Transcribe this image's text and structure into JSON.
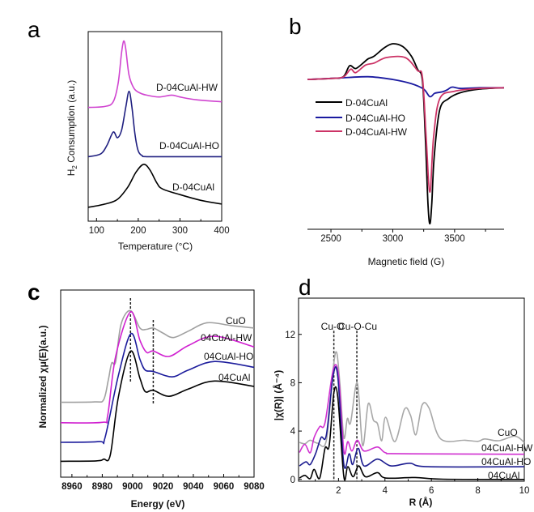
{
  "chart_data": [
    {
      "panel": "a",
      "type": "line",
      "xlabel": "Temperature (°C)",
      "ylabel_main": "H",
      "ylabel_sub": "2",
      "ylabel_rest": " Consumption (a.u.)",
      "xlim": [
        80,
        400
      ],
      "ylim": [
        0,
        10
      ],
      "xticks": [
        100,
        200,
        300,
        400
      ],
      "series": [
        {
          "name": "D-04CuAl-HW",
          "color": "#d044d0",
          "points": [
            [
              80,
              6.0
            ],
            [
              120,
              6.05
            ],
            [
              140,
              6.3
            ],
            [
              152,
              7.3
            ],
            [
              160,
              8.9
            ],
            [
              165,
              9.5
            ],
            [
              170,
              9.1
            ],
            [
              178,
              7.7
            ],
            [
              190,
              7.0
            ],
            [
              205,
              6.75
            ],
            [
              220,
              6.65
            ],
            [
              250,
              6.55
            ],
            [
              280,
              6.65
            ],
            [
              300,
              6.55
            ],
            [
              340,
              6.4
            ],
            [
              400,
              6.3
            ]
          ]
        },
        {
          "name": "D-04CuAl-HO",
          "color": "#1f1f80",
          "points": [
            [
              80,
              3.4
            ],
            [
              110,
              3.55
            ],
            [
              125,
              4.0
            ],
            [
              140,
              4.7
            ],
            [
              150,
              4.4
            ],
            [
              160,
              4.8
            ],
            [
              170,
              6.0
            ],
            [
              178,
              6.85
            ],
            [
              185,
              6.0
            ],
            [
              192,
              4.6
            ],
            [
              200,
              3.7
            ],
            [
              210,
              3.45
            ],
            [
              220,
              3.4
            ],
            [
              300,
              3.4
            ],
            [
              400,
              3.4
            ]
          ]
        },
        {
          "name": "D-04CuAl",
          "color": "#000000",
          "points": [
            [
              80,
              0.73
            ],
            [
              120,
              0.9
            ],
            [
              150,
              1.15
            ],
            [
              175,
              1.8
            ],
            [
              195,
              2.6
            ],
            [
              213,
              3.0
            ],
            [
              228,
              2.7
            ],
            [
              245,
              2.0
            ],
            [
              258,
              1.7
            ],
            [
              300,
              1.4
            ],
            [
              350,
              1.1
            ],
            [
              400,
              0.9
            ]
          ]
        }
      ]
    },
    {
      "panel": "b",
      "type": "line",
      "xlabel": "Magnetic field (G)",
      "ylabel": "",
      "xlim": [
        2310,
        3900
      ],
      "ylim": [
        -10.3,
        4.5
      ],
      "xticks": [
        2500,
        3000,
        3500
      ],
      "legend": "upper-left",
      "series": [
        {
          "name": "D-04CuAl",
          "color": "#000000",
          "points": [
            [
              2310,
              0.6
            ],
            [
              2500,
              0.68
            ],
            [
              2600,
              0.8
            ],
            [
              2650,
              1.6
            ],
            [
              2700,
              1.4
            ],
            [
              2760,
              1.8
            ],
            [
              2800,
              2.1
            ],
            [
              2850,
              2.3
            ],
            [
              2930,
              2.9
            ],
            [
              3000,
              3.2
            ],
            [
              3080,
              3.0
            ],
            [
              3150,
              2.3
            ],
            [
              3200,
              1.35
            ],
            [
              3240,
              0.5
            ],
            [
              3265,
              -4.0
            ],
            [
              3285,
              -8.5
            ],
            [
              3300,
              -9.9
            ],
            [
              3315,
              -8.5
            ],
            [
              3335,
              -5.0
            ],
            [
              3380,
              -1.6
            ],
            [
              3450,
              -0.8
            ],
            [
              3550,
              -0.35
            ],
            [
              3700,
              -0.1
            ],
            [
              3900,
              0
            ]
          ]
        },
        {
          "name": "D-04CuAl-HO",
          "color": "#1a1aa0",
          "points": [
            [
              2310,
              0.6
            ],
            [
              2550,
              0.7
            ],
            [
              2800,
              0.8
            ],
            [
              3000,
              0.6
            ],
            [
              3150,
              0.3
            ],
            [
              3250,
              -0.1
            ],
            [
              3300,
              -0.65
            ],
            [
              3340,
              -0.4
            ],
            [
              3400,
              -0.3
            ],
            [
              3440,
              -0.15
            ],
            [
              3480,
              0.05
            ],
            [
              3550,
              -0.05
            ],
            [
              3700,
              0
            ],
            [
              3900,
              0
            ]
          ]
        },
        {
          "name": "D-04CuAl-HW",
          "color": "#cc3366",
          "points": [
            [
              2310,
              0.6
            ],
            [
              2500,
              0.68
            ],
            [
              2600,
              0.78
            ],
            [
              2660,
              1.35
            ],
            [
              2700,
              1.1
            ],
            [
              2780,
              1.65
            ],
            [
              2850,
              1.8
            ],
            [
              2950,
              2.2
            ],
            [
              3100,
              2.2
            ],
            [
              3200,
              1.25
            ],
            [
              3240,
              0.76
            ],
            [
              3270,
              -3.6
            ],
            [
              3300,
              -7.6
            ],
            [
              3330,
              -3.6
            ],
            [
              3380,
              -0.8
            ],
            [
              3500,
              -0.25
            ],
            [
              3700,
              -0.05
            ],
            [
              3900,
              0
            ]
          ]
        }
      ]
    },
    {
      "panel": "c",
      "type": "line",
      "xlabel": "Energy (eV)",
      "ylabel": "Normalized χμ(E)(a.u.)",
      "xlim": [
        8952.6,
        9080
      ],
      "ylim": [
        0,
        10
      ],
      "xticks": [
        8960,
        8980,
        9000,
        9020,
        9040,
        9060,
        9080
      ],
      "reference_lines_x": [
        8998.6,
        9013.6
      ],
      "series": [
        {
          "name": "CuO",
          "color": "#a0a0a0",
          "points": [
            [
              8952.6,
              4.0
            ],
            [
              8975,
              4.02
            ],
            [
              8980.9,
              4.14
            ],
            [
              8984,
              5.2
            ],
            [
              8986.2,
              6.09
            ],
            [
              8988.8,
              6.16
            ],
            [
              8992.4,
              8.18
            ],
            [
              8998.6,
              8.9
            ],
            [
              9004.8,
              7.97
            ],
            [
              9009.2,
              7.9
            ],
            [
              9013.6,
              7.97
            ],
            [
              9020,
              7.7
            ],
            [
              9026.9,
              7.46
            ],
            [
              9036.6,
              7.8
            ],
            [
              9049,
              8.25
            ],
            [
              9065,
              8.1
            ],
            [
              9080,
              7.97
            ]
          ]
        },
        {
          "name": "04CuAl-HW",
          "color": "#d020d0",
          "points": [
            [
              8952.6,
              2.91
            ],
            [
              8980,
              2.93
            ],
            [
              8983.5,
              3.27
            ],
            [
              8988.8,
              6.45
            ],
            [
              8998.6,
              8.83
            ],
            [
              9004.8,
              7.32
            ],
            [
              9009.2,
              6.67
            ],
            [
              9013.6,
              6.74
            ],
            [
              9024,
              6.45
            ],
            [
              9036.6,
              7.03
            ],
            [
              9054,
              7.53
            ],
            [
              9080,
              6.96
            ]
          ]
        },
        {
          "name": "04CuAl-HO",
          "color": "#1c1c9c",
          "points": [
            [
              8952.6,
              1.86
            ],
            [
              8978,
              1.9
            ],
            [
              8981.8,
              2.11
            ],
            [
              8990.6,
              5.43
            ],
            [
              8998.9,
              7.67
            ],
            [
              9004.8,
              6.3
            ],
            [
              9008.3,
              5.72
            ],
            [
              9013.6,
              5.65
            ],
            [
              9026,
              5.36
            ],
            [
              9036.6,
              5.72
            ],
            [
              9054,
              6.18
            ],
            [
              9080,
              5.87
            ]
          ]
        },
        {
          "name": "04CuAl",
          "color": "#000000",
          "points": [
            [
              8952.6,
              0.85
            ],
            [
              8976,
              0.87
            ],
            [
              8980.9,
              0.96
            ],
            [
              8985.3,
              1.18
            ],
            [
              8990.6,
              4.28
            ],
            [
              8998.6,
              6.73
            ],
            [
              9004.8,
              5.29
            ],
            [
              9008.3,
              4.57
            ],
            [
              9013.6,
              4.64
            ],
            [
              9024,
              4.32
            ],
            [
              9036.6,
              4.71
            ],
            [
              9054,
              5.14
            ],
            [
              9080,
              4.85
            ]
          ]
        }
      ]
    },
    {
      "panel": "d",
      "type": "line",
      "xlabel": "R (Å)",
      "ylabel": "|χ(R)| (Å⁻⁴)",
      "xlim": [
        0.28,
        10
      ],
      "ylim": [
        -0.15,
        15
      ],
      "xticks": [
        2,
        4,
        6,
        8,
        10
      ],
      "yticks": [
        0,
        4,
        8,
        12
      ],
      "reference_lines_x": [
        1.8,
        2.79
      ],
      "annotations": [
        "Cu-O",
        "Cu-O-Cu"
      ],
      "series": [
        {
          "name": "CuO",
          "color": "#a8a8a8",
          "points": [
            [
              0.32,
              3.06
            ],
            [
              0.55,
              2.95
            ],
            [
              0.78,
              3.24
            ],
            [
              1.1,
              3.0
            ],
            [
              1.48,
              3.24
            ],
            [
              1.77,
              9.16
            ],
            [
              1.92,
              10.5
            ],
            [
              2.06,
              7.9
            ],
            [
              2.23,
              3.46
            ],
            [
              2.38,
              5.03
            ],
            [
              2.52,
              4.7
            ],
            [
              2.81,
              7.98
            ],
            [
              3.04,
              2.8
            ],
            [
              3.28,
              6.26
            ],
            [
              3.5,
              4.92
            ],
            [
              3.68,
              4.6
            ],
            [
              3.86,
              3.2
            ],
            [
              4.03,
              5.14
            ],
            [
              4.43,
              3.13
            ],
            [
              4.84,
              5.8
            ],
            [
              5.1,
              5.3
            ],
            [
              5.33,
              3.69
            ],
            [
              5.6,
              6.15
            ],
            [
              5.9,
              5.9
            ],
            [
              6.4,
              3.35
            ],
            [
              7.45,
              3.24
            ],
            [
              8.0,
              3.15
            ],
            [
              8.3,
              3.35
            ],
            [
              8.9,
              3.2
            ],
            [
              9.6,
              3.58
            ],
            [
              10,
              3.06
            ]
          ]
        },
        {
          "name": "04CuAl-HW",
          "color": "#d030d0",
          "points": [
            [
              0.32,
              2.23
            ],
            [
              0.55,
              2.9
            ],
            [
              0.78,
              2.2
            ],
            [
              0.95,
              3.46
            ],
            [
              1.19,
              4.36
            ],
            [
              1.42,
              4.69
            ],
            [
              1.77,
              9.05
            ],
            [
              2.0,
              8.6
            ],
            [
              2.23,
              2.35
            ],
            [
              2.4,
              3.13
            ],
            [
              2.58,
              2.35
            ],
            [
              2.81,
              3.24
            ],
            [
              3.1,
              2.35
            ],
            [
              3.68,
              2.68
            ],
            [
              4.03,
              2.2
            ],
            [
              4.72,
              2.12
            ],
            [
              10,
              2.08
            ]
          ]
        },
        {
          "name": "04CuAl-HO",
          "color": "#1c1c90",
          "points": [
            [
              0.32,
              1.12
            ],
            [
              0.6,
              1.45
            ],
            [
              0.78,
              1.23
            ],
            [
              1.01,
              2.12
            ],
            [
              1.25,
              3.46
            ],
            [
              1.48,
              3.69
            ],
            [
              1.77,
              8.6
            ],
            [
              1.97,
              8.5
            ],
            [
              2.23,
              1.23
            ],
            [
              2.46,
              2.12
            ],
            [
              2.61,
              1.23
            ],
            [
              2.85,
              2.57
            ],
            [
              3.1,
              1.12
            ],
            [
              3.68,
              1.68
            ],
            [
              4.26,
              1.12
            ],
            [
              5.07,
              1.34
            ],
            [
              5.88,
              1.05
            ],
            [
              10,
              1.05
            ]
          ]
        },
        {
          "name": "04CuAl",
          "color": "#000000",
          "points": [
            [
              0.32,
              0.11
            ],
            [
              0.55,
              0.33
            ],
            [
              0.78,
              0.07
            ],
            [
              0.95,
              0.83
            ],
            [
              1.19,
              0.1
            ],
            [
              1.42,
              2.57
            ],
            [
              1.6,
              2.8
            ],
            [
              1.8,
              7.15
            ],
            [
              1.97,
              6.8
            ],
            [
              2.23,
              0.22
            ],
            [
              2.4,
              1.05
            ],
            [
              2.63,
              0.22
            ],
            [
              2.87,
              1.12
            ],
            [
              3.16,
              0.22
            ],
            [
              3.68,
              0.56
            ],
            [
              4.03,
              0.11
            ],
            [
              5.3,
              0.16
            ],
            [
              6.5,
              0.02
            ],
            [
              10,
              0
            ]
          ]
        }
      ]
    }
  ],
  "panels": {
    "a": {
      "letter": "a",
      "labels": [
        "D-04CuAl-HW",
        "D-04CuAl-HO",
        "D-04CuAl"
      ]
    },
    "b": {
      "letter": "b",
      "legend": [
        "D-04CuAl",
        "D-04CuAl-HO",
        "D-04CuAl-HW"
      ]
    },
    "c": {
      "letter": "c",
      "labels": [
        "CuO",
        "04CuAl-HW",
        "04CuAl-HO",
        "04CuAl"
      ]
    },
    "d": {
      "letter": "d",
      "labels": [
        "CuO",
        "04CuAl-HW",
        "04CuAl-HO",
        "04CuAl"
      ]
    }
  }
}
